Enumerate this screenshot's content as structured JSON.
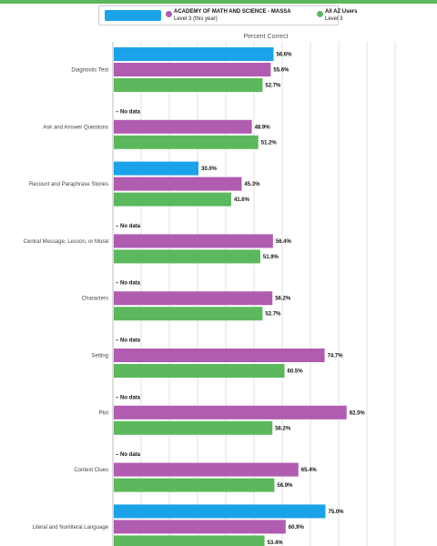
{
  "legend": {
    "school_name": "ACADEMY OF MATH AND SCIENCE - MASSA",
    "school_sub": "Level 3 (this year)",
    "az_name": "All AZ Users",
    "az_sub": "Level 3"
  },
  "colors": {
    "self": "#1aa3e8",
    "school": "#b05cb0",
    "az": "#5cb85c",
    "grid": "#e2e2e2",
    "topbar": "#5cb85c"
  },
  "no_data_label": "– No data",
  "chart_data": {
    "type": "bar",
    "orientation": "horizontal",
    "title": "Percent Correct",
    "xlim": [
      0,
      100
    ],
    "grid": true,
    "legend_position": "top",
    "categories": [
      "Diagnostic Test",
      "Ask and Answer Questions",
      "Recount and Paraphrase Stories",
      "Central Message, Lesson, or Moral",
      "Characters",
      "Setting",
      "Plot",
      "Context Clues",
      "Literal and Nonliteral Language"
    ],
    "series": [
      {
        "key": "self",
        "values": [
          56.6,
          null,
          30.0,
          null,
          null,
          null,
          null,
          null,
          75.0
        ]
      },
      {
        "key": "school",
        "name": "ACADEMY OF MATH AND SCIENCE - MASSA",
        "values": [
          55.6,
          48.9,
          45.3,
          56.4,
          56.2,
          74.7,
          82.5,
          65.4,
          60.9
        ]
      },
      {
        "key": "az",
        "name": "All AZ Users",
        "values": [
          52.7,
          51.2,
          41.6,
          51.9,
          52.7,
          60.5,
          56.2,
          56.9,
          53.4
        ]
      }
    ]
  }
}
